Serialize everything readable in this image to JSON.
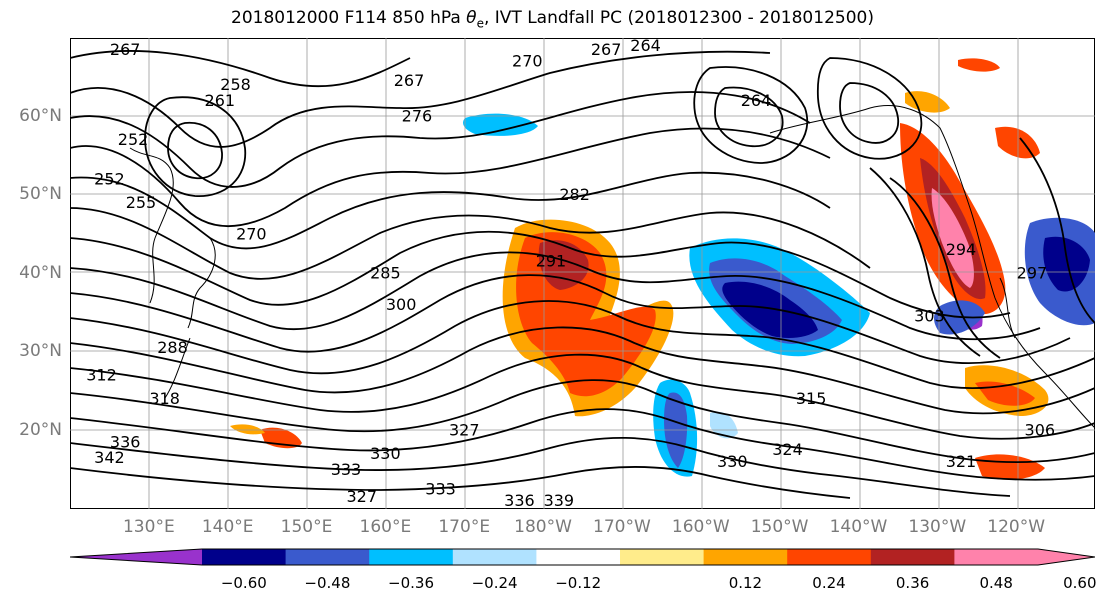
{
  "title_prefix": "2018012000 F114 850 hPa ",
  "title_symbol": "θ",
  "title_sub": "e",
  "title_suffix": ", IVT Landfall PC (2018012300 - 2018012500)",
  "lat_labels": [
    "60°N",
    "50°N",
    "40°N",
    "30°N",
    "20°N"
  ],
  "lon_labels": [
    "130°E",
    "140°E",
    "150°E",
    "160°E",
    "170°E",
    "180°W",
    "170°W",
    "160°W",
    "150°W",
    "140°W",
    "130°W",
    "120°W"
  ],
  "colorbar": {
    "ticks": [
      "−0.60",
      "−0.48",
      "−0.36",
      "−0.24",
      "−0.12",
      "0.12",
      "0.24",
      "0.36",
      "0.48",
      "0.60"
    ],
    "colors": [
      "#9932cc",
      "#00008b",
      "#3a5acd",
      "#00bfff",
      "#b0e2ff",
      "#ffffff",
      "#ffec8b",
      "#ffa500",
      "#ff4500",
      "#b22222",
      "#ff82ab",
      "#ff82ab"
    ]
  },
  "contour_labels": [
    {
      "text": "267",
      "lon": 127,
      "lat": 68.5
    },
    {
      "text": "258",
      "lon": 141,
      "lat": 64
    },
    {
      "text": "261",
      "lon": 139,
      "lat": 62
    },
    {
      "text": "267",
      "lon": 163,
      "lat": 64.5
    },
    {
      "text": "276",
      "lon": 164,
      "lat": 60
    },
    {
      "text": "270",
      "lon": 178,
      "lat": 67
    },
    {
      "text": "267",
      "lon": -172,
      "lat": 68.5
    },
    {
      "text": "264",
      "lon": -167,
      "lat": 69
    },
    {
      "text": "264",
      "lon": -153,
      "lat": 62
    },
    {
      "text": "252",
      "lon": 125,
      "lat": 52
    },
    {
      "text": "252",
      "lon": 128,
      "lat": 57
    },
    {
      "text": "255",
      "lon": 129,
      "lat": 49
    },
    {
      "text": "270",
      "lon": 143,
      "lat": 45
    },
    {
      "text": "282",
      "lon": -176,
      "lat": 50
    },
    {
      "text": "291",
      "lon": -179,
      "lat": 41.5
    },
    {
      "text": "285",
      "lon": 160,
      "lat": 40
    },
    {
      "text": "300",
      "lon": 162,
      "lat": 36
    },
    {
      "text": "288",
      "lon": 133,
      "lat": 30.5
    },
    {
      "text": "312",
      "lon": 124,
      "lat": 27
    },
    {
      "text": "318",
      "lon": 132,
      "lat": 24
    },
    {
      "text": "327",
      "lon": 170,
      "lat": 20
    },
    {
      "text": "336",
      "lon": 127,
      "lat": 18.5
    },
    {
      "text": "342",
      "lon": 125,
      "lat": 16.5
    },
    {
      "text": "333",
      "lon": 155,
      "lat": 15
    },
    {
      "text": "330",
      "lon": 160,
      "lat": 17
    },
    {
      "text": "327",
      "lon": 157,
      "lat": 11.5
    },
    {
      "text": "333",
      "lon": 167,
      "lat": 12.5
    },
    {
      "text": "336",
      "lon": 177,
      "lat": 11
    },
    {
      "text": "339",
      "lon": -178,
      "lat": 11
    },
    {
      "text": "315",
      "lon": -146,
      "lat": 24
    },
    {
      "text": "324",
      "lon": -149,
      "lat": 17.5
    },
    {
      "text": "330",
      "lon": -156,
      "lat": 16
    },
    {
      "text": "306",
      "lon": -117,
      "lat": 20
    },
    {
      "text": "321",
      "lon": -127,
      "lat": 16
    },
    {
      "text": "303",
      "lon": -131,
      "lat": 34.5
    },
    {
      "text": "294",
      "lon": -127,
      "lat": 43
    },
    {
      "text": "297",
      "lon": -118,
      "lat": 40
    }
  ]
}
